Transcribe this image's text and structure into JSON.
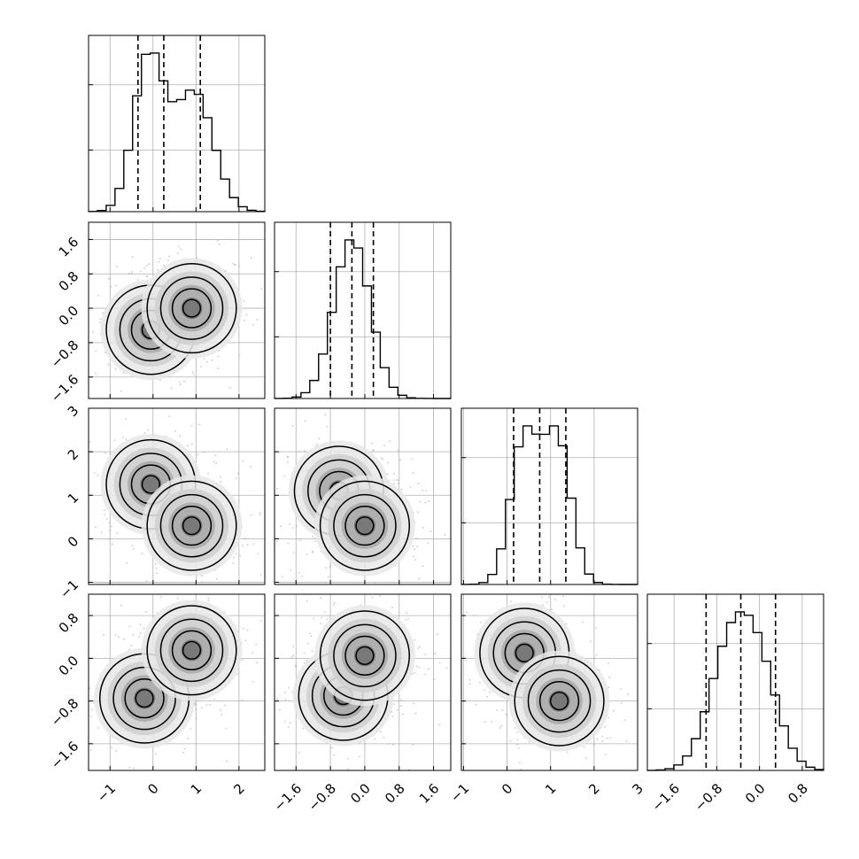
{
  "chart_data": {
    "type": "corner",
    "title": "",
    "parameters": [
      "",
      "",
      "",
      ""
    ],
    "ranges": [
      [
        -1.5,
        2.6
      ],
      [
        -2.1,
        2.0
      ],
      [
        -1.05,
        3.0
      ],
      [
        -2.1,
        1.2
      ]
    ],
    "ticks": [
      {
        "values": [
          -1,
          0,
          1,
          2
        ],
        "labels": [
          "−1",
          "0",
          "1",
          "2"
        ]
      },
      {
        "values": [
          -1.6,
          -0.8,
          0.0,
          0.8,
          1.6
        ],
        "labels": [
          "−1.6",
          "−0.8",
          "0.0",
          "0.8",
          "1.6"
        ]
      },
      {
        "values": [
          -1,
          0,
          1,
          2,
          3
        ],
        "labels": [
          "−1",
          "0",
          "1",
          "2",
          "3"
        ]
      },
      {
        "values": [
          -1.6,
          -0.8,
          0.0,
          0.8
        ],
        "labels": [
          "−1.6",
          "−0.8",
          "0.0",
          "0.8"
        ]
      }
    ],
    "quantiles": [
      [
        -0.35,
        0.25,
        1.1
      ],
      [
        -0.8,
        -0.3,
        0.2
      ],
      [
        0.15,
        0.75,
        1.35
      ],
      [
        -1.0,
        -0.35,
        0.3
      ]
    ],
    "marginals": [
      {
        "type": "mixture",
        "components": [
          {
            "w": 0.5,
            "mu": -0.1,
            "sd": 0.35
          },
          {
            "w": 0.5,
            "mu": 0.95,
            "sd": 0.45
          }
        ]
      },
      {
        "type": "mixture",
        "components": [
          {
            "w": 1.0,
            "mu": -0.3,
            "sd": 0.42
          }
        ]
      },
      {
        "type": "mixture",
        "components": [
          {
            "w": 0.5,
            "mu": 0.4,
            "sd": 0.32
          },
          {
            "w": 0.5,
            "mu": 1.15,
            "sd": 0.32
          }
        ]
      },
      {
        "type": "mixture",
        "components": [
          {
            "w": 0.5,
            "mu": -0.6,
            "sd": 0.38
          },
          {
            "w": 0.5,
            "mu": -0.05,
            "sd": 0.38
          }
        ]
      }
    ],
    "pair_modes": {
      "1,0": [
        {
          "x": -0.05,
          "y": -0.5
        },
        {
          "x": 0.9,
          "y": 0.0
        }
      ],
      "2,0": [
        {
          "x": -0.05,
          "y": 1.25
        },
        {
          "x": 0.9,
          "y": 0.3
        }
      ],
      "2,1": [
        {
          "x": -0.6,
          "y": 1.1
        },
        {
          "x": 0.0,
          "y": 0.3
        }
      ],
      "3,0": [
        {
          "x": -0.2,
          "y": -0.75
        },
        {
          "x": 0.9,
          "y": 0.15
        }
      ],
      "3,1": [
        {
          "x": -0.5,
          "y": -0.7
        },
        {
          "x": 0.0,
          "y": 0.05
        }
      ],
      "3,2": [
        {
          "x": 0.4,
          "y": 0.1
        },
        {
          "x": 1.2,
          "y": -0.8
        }
      ]
    },
    "grid": true,
    "bins": 20
  }
}
